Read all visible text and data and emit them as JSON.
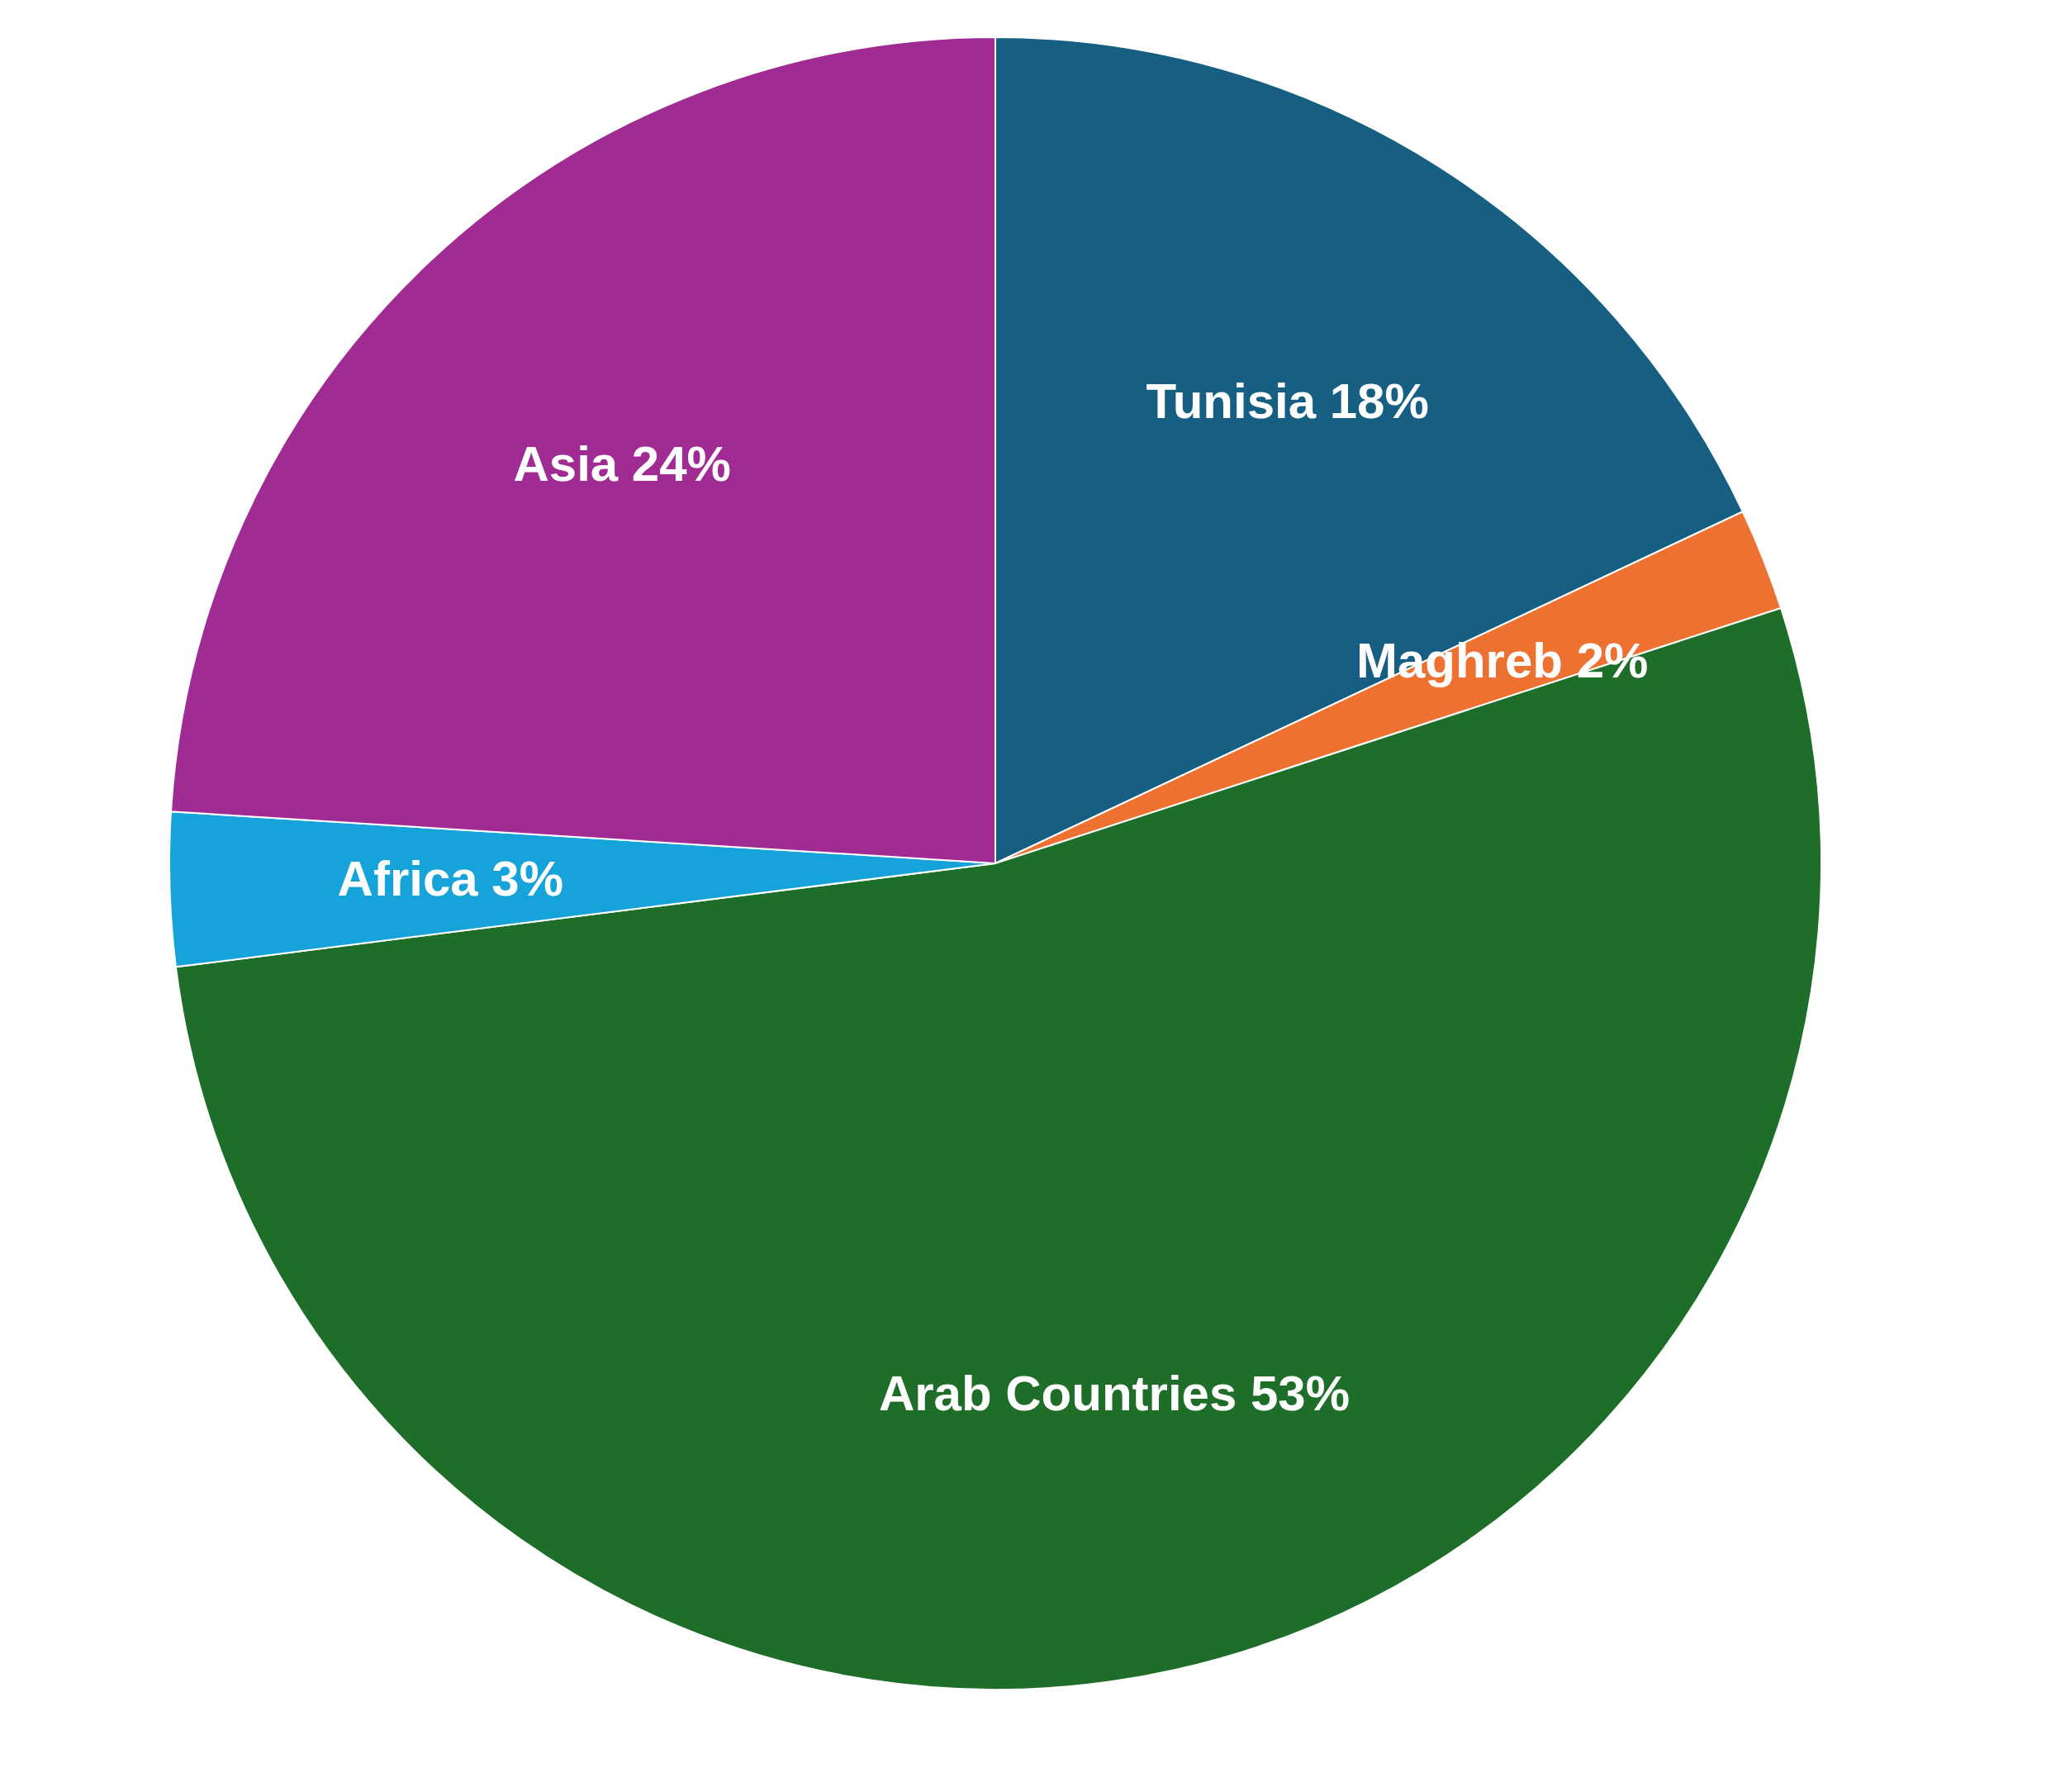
{
  "chart_data": {
    "type": "pie",
    "categories": [
      "Tunisia",
      "Maghreb",
      "Arab Countries",
      "Africa",
      "Asia"
    ],
    "values": [
      18,
      2,
      53,
      3,
      24
    ],
    "colors": [
      "#165f82",
      "#ed7232",
      "#1e6e29",
      "#16a3d9",
      "#a02b93"
    ],
    "value_labels": [
      "18%",
      "2%",
      "53%",
      "3%",
      "24%"
    ]
  }
}
